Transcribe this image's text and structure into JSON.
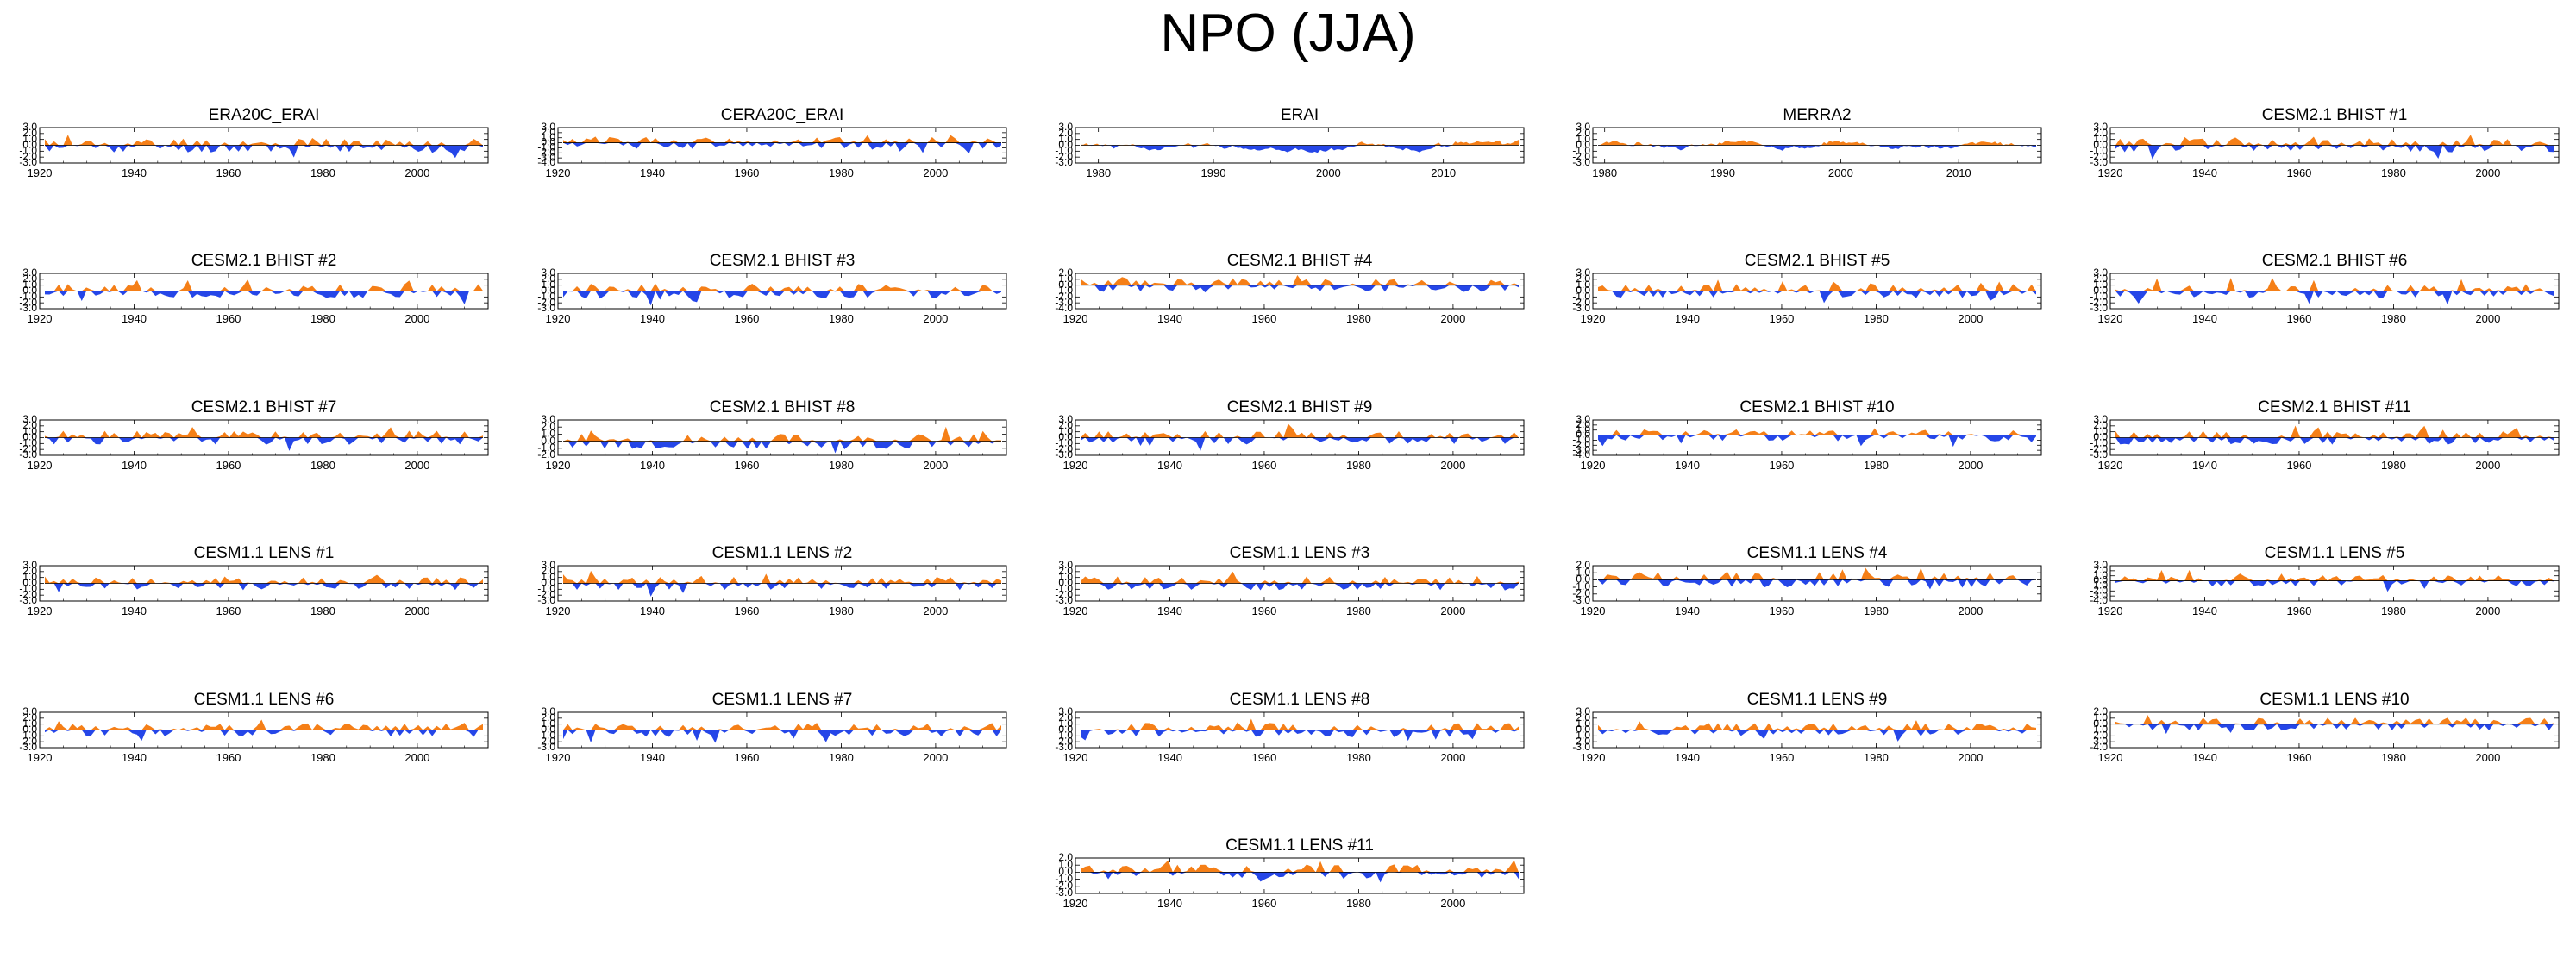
{
  "figure": {
    "title": "NPO (JJA)"
  },
  "colors": {
    "positive": "#f57f17",
    "negative": "#2546e8",
    "axis": "#000000"
  },
  "chart_data": [
    {
      "type": "area",
      "title": "ERA20C_ERAI",
      "xlim": [
        1920,
        2015
      ],
      "ylim": [
        -3,
        3
      ],
      "yticks": [
        3,
        2,
        1,
        0,
        -1,
        -2,
        -3
      ],
      "xticks": [
        1920,
        1940,
        1960,
        1980,
        2000
      ],
      "seed": 11,
      "amp": 1.3
    },
    {
      "type": "area",
      "title": "CERA20C_ERAI",
      "xlim": [
        1920,
        2015
      ],
      "ylim": [
        -4,
        3
      ],
      "yticks": [
        3,
        2,
        1,
        0,
        -1,
        -2,
        -3,
        -4
      ],
      "xticks": [
        1920,
        1940,
        1960,
        1980,
        2000
      ],
      "seed": 12,
      "amp": 1.2
    },
    {
      "type": "area",
      "title": "ERAI",
      "xlim": [
        1978,
        2017
      ],
      "ylim": [
        -3,
        3
      ],
      "yticks": [
        3,
        2,
        1,
        0,
        -1,
        -2,
        -3
      ],
      "xticks": [
        1980,
        1990,
        2000,
        2010
      ],
      "seed": 13,
      "amp": 1.4,
      "smooth": true
    },
    {
      "type": "area",
      "title": "MERRA2",
      "xlim": [
        1979,
        2017
      ],
      "ylim": [
        -3,
        3
      ],
      "yticks": [
        3,
        2,
        1,
        0,
        -1,
        -2,
        -3
      ],
      "xticks": [
        1980,
        1990,
        2000,
        2010
      ],
      "seed": 14,
      "amp": 1.4,
      "smooth": true
    },
    {
      "type": "area",
      "title": "CESM2.1 BHIST #1",
      "xlim": [
        1920,
        2015
      ],
      "ylim": [
        -3,
        3
      ],
      "yticks": [
        3,
        2,
        1,
        0,
        -1,
        -2,
        -3
      ],
      "xticks": [
        1920,
        1940,
        1960,
        1980,
        2000
      ],
      "seed": 15,
      "amp": 1.2
    },
    {
      "type": "area",
      "title": "CESM2.1 BHIST #2",
      "xlim": [
        1920,
        2015
      ],
      "ylim": [
        -3,
        3
      ],
      "yticks": [
        3,
        2,
        1,
        0,
        -1,
        -2,
        -3
      ],
      "xticks": [
        1920,
        1940,
        1960,
        1980,
        2000
      ],
      "seed": 21,
      "amp": 1.2
    },
    {
      "type": "area",
      "title": "CESM2.1 BHIST #3",
      "xlim": [
        1920,
        2015
      ],
      "ylim": [
        -3,
        3
      ],
      "yticks": [
        3,
        2,
        1,
        0,
        -1,
        -2,
        -3
      ],
      "xticks": [
        1920,
        1940,
        1960,
        1980,
        2000
      ],
      "seed": 22,
      "amp": 1.3
    },
    {
      "type": "area",
      "title": "CESM2.1 BHIST #4",
      "xlim": [
        1920,
        2015
      ],
      "ylim": [
        -4,
        2
      ],
      "yticks": [
        2,
        1,
        0,
        -1,
        -2,
        -3,
        -4
      ],
      "xticks": [
        1920,
        1940,
        1960,
        1980,
        2000
      ],
      "seed": 23,
      "amp": 1.2
    },
    {
      "type": "area",
      "title": "CESM2.1 BHIST #5",
      "xlim": [
        1920,
        2015
      ],
      "ylim": [
        -3,
        3
      ],
      "yticks": [
        3,
        2,
        1,
        0,
        -1,
        -2,
        -3
      ],
      "xticks": [
        1920,
        1940,
        1960,
        1980,
        2000
      ],
      "seed": 24,
      "amp": 1.2
    },
    {
      "type": "area",
      "title": "CESM2.1 BHIST #6",
      "xlim": [
        1920,
        2015
      ],
      "ylim": [
        -3,
        3
      ],
      "yticks": [
        3,
        2,
        1,
        0,
        -1,
        -2,
        -3
      ],
      "xticks": [
        1920,
        1940,
        1960,
        1980,
        2000
      ],
      "seed": 25,
      "amp": 1.2
    },
    {
      "type": "area",
      "title": "CESM2.1 BHIST #7",
      "xlim": [
        1920,
        2015
      ],
      "ylim": [
        -3,
        3
      ],
      "yticks": [
        3,
        2,
        1,
        0,
        -1,
        -2,
        -3
      ],
      "xticks": [
        1920,
        1940,
        1960,
        1980,
        2000
      ],
      "seed": 31,
      "amp": 1.2
    },
    {
      "type": "area",
      "title": "CESM2.1 BHIST #8",
      "xlim": [
        1920,
        2015
      ],
      "ylim": [
        -2,
        3
      ],
      "yticks": [
        3,
        2,
        1,
        0,
        -1,
        -2
      ],
      "xticks": [
        1920,
        1940,
        1960,
        1980,
        2000
      ],
      "seed": 32,
      "amp": 1.1
    },
    {
      "type": "area",
      "title": "CESM2.1 BHIST #9",
      "xlim": [
        1920,
        2015
      ],
      "ylim": [
        -3,
        3
      ],
      "yticks": [
        3,
        2,
        1,
        0,
        -1,
        -2,
        -3
      ],
      "xticks": [
        1920,
        1940,
        1960,
        1980,
        2000
      ],
      "seed": 33,
      "amp": 1.2
    },
    {
      "type": "area",
      "title": "CESM2.1 BHIST #10",
      "xlim": [
        1920,
        2015
      ],
      "ylim": [
        -4,
        3
      ],
      "yticks": [
        3,
        2,
        1,
        0,
        -1,
        -2,
        -3,
        -4
      ],
      "xticks": [
        1920,
        1940,
        1960,
        1980,
        2000
      ],
      "seed": 34,
      "amp": 1.2
    },
    {
      "type": "area",
      "title": "CESM2.1 BHIST #11",
      "xlim": [
        1920,
        2015
      ],
      "ylim": [
        -3,
        3
      ],
      "yticks": [
        3,
        2,
        1,
        0,
        -1,
        -2,
        -3
      ],
      "xticks": [
        1920,
        1940,
        1960,
        1980,
        2000
      ],
      "seed": 35,
      "amp": 1.2
    },
    {
      "type": "area",
      "title": "CESM1.1 LENS #1",
      "xlim": [
        1920,
        2015
      ],
      "ylim": [
        -3,
        3
      ],
      "yticks": [
        3,
        2,
        1,
        0,
        -1,
        -2,
        -3
      ],
      "xticks": [
        1920,
        1940,
        1960,
        1980,
        2000
      ],
      "seed": 41,
      "amp": 1.2
    },
    {
      "type": "area",
      "title": "CESM1.1 LENS #2",
      "xlim": [
        1920,
        2015
      ],
      "ylim": [
        -3,
        3
      ],
      "yticks": [
        3,
        2,
        1,
        0,
        -1,
        -2,
        -3
      ],
      "xticks": [
        1920,
        1940,
        1960,
        1980,
        2000
      ],
      "seed": 42,
      "amp": 1.2
    },
    {
      "type": "area",
      "title": "CESM1.1 LENS #3",
      "xlim": [
        1920,
        2015
      ],
      "ylim": [
        -3,
        3
      ],
      "yticks": [
        3,
        2,
        1,
        0,
        -1,
        -2,
        -3
      ],
      "xticks": [
        1920,
        1940,
        1960,
        1980,
        2000
      ],
      "seed": 43,
      "amp": 1.2
    },
    {
      "type": "area",
      "title": "CESM1.1 LENS #4",
      "xlim": [
        1920,
        2015
      ],
      "ylim": [
        -3,
        2
      ],
      "yticks": [
        2,
        1,
        0,
        -1,
        -2,
        -3
      ],
      "xticks": [
        1920,
        1940,
        1960,
        1980,
        2000
      ],
      "seed": 44,
      "amp": 1.1
    },
    {
      "type": "area",
      "title": "CESM1.1 LENS #5",
      "xlim": [
        1920,
        2015
      ],
      "ylim": [
        -4,
        3
      ],
      "yticks": [
        3,
        2,
        1,
        0,
        -1,
        -2,
        -3,
        -4
      ],
      "xticks": [
        1920,
        1940,
        1960,
        1980,
        2000
      ],
      "seed": 45,
      "amp": 1.1
    },
    {
      "type": "area",
      "title": "CESM1.1 LENS #6",
      "xlim": [
        1920,
        2015
      ],
      "ylim": [
        -3,
        3
      ],
      "yticks": [
        3,
        2,
        1,
        0,
        -1,
        -2,
        -3
      ],
      "xticks": [
        1920,
        1940,
        1960,
        1980,
        2000
      ],
      "seed": 51,
      "amp": 1.2
    },
    {
      "type": "area",
      "title": "CESM1.1 LENS #7",
      "xlim": [
        1920,
        2015
      ],
      "ylim": [
        -3,
        3
      ],
      "yticks": [
        3,
        2,
        1,
        0,
        -1,
        -2,
        -3
      ],
      "xticks": [
        1920,
        1940,
        1960,
        1980,
        2000
      ],
      "seed": 52,
      "amp": 1.2
    },
    {
      "type": "area",
      "title": "CESM1.1 LENS #8",
      "xlim": [
        1920,
        2015
      ],
      "ylim": [
        -3,
        3
      ],
      "yticks": [
        3,
        2,
        1,
        0,
        -1,
        -2,
        -3
      ],
      "xticks": [
        1920,
        1940,
        1960,
        1980,
        2000
      ],
      "seed": 53,
      "amp": 1.2
    },
    {
      "type": "area",
      "title": "CESM1.1 LENS #9",
      "xlim": [
        1920,
        2015
      ],
      "ylim": [
        -3,
        3
      ],
      "yticks": [
        3,
        2,
        1,
        0,
        -1,
        -2,
        -3
      ],
      "xticks": [
        1920,
        1940,
        1960,
        1980,
        2000
      ],
      "seed": 54,
      "amp": 1.2
    },
    {
      "type": "area",
      "title": "CESM1.1 LENS #10",
      "xlim": [
        1920,
        2015
      ],
      "ylim": [
        -4,
        2
      ],
      "yticks": [
        2,
        1,
        0,
        -1,
        -2,
        -3,
        -4
      ],
      "xticks": [
        1920,
        1940,
        1960,
        1980,
        2000
      ],
      "seed": 55,
      "amp": 1.1
    },
    {
      "type": "area",
      "title": "CESM1.1 LENS #11",
      "xlim": [
        1920,
        2015
      ],
      "ylim": [
        -3,
        2
      ],
      "yticks": [
        2,
        1,
        0,
        -1,
        -2,
        -3
      ],
      "xticks": [
        1920,
        1940,
        1960,
        1980,
        2000
      ],
      "seed": 61,
      "amp": 1.1
    }
  ]
}
